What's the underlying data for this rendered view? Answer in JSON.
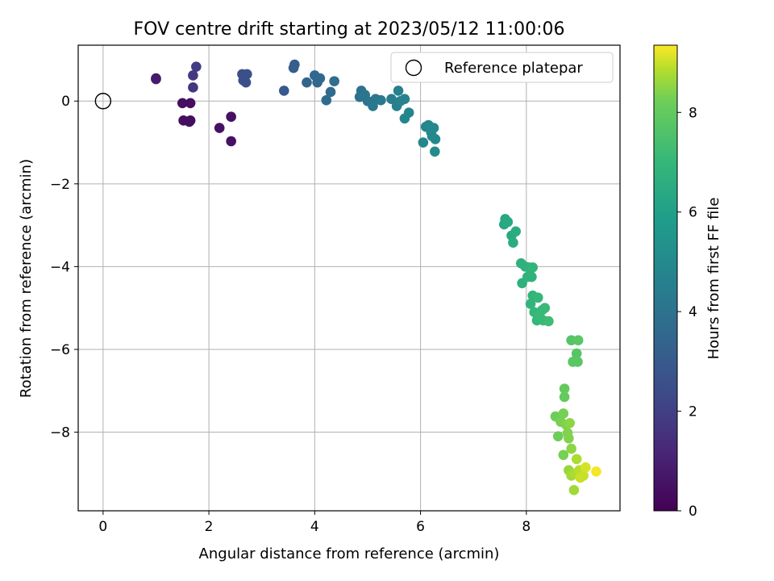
{
  "chart_data": {
    "type": "scatter",
    "title": "FOV centre drift starting at 2023/05/12 11:00:06",
    "xlabel": "Angular distance from reference (arcmin)",
    "ylabel": "Rotation from reference (arcmin)",
    "colorbar_label": "Hours from first FF file",
    "colormap": "viridis",
    "xlim": [
      -0.47,
      9.77
    ],
    "ylim": [
      -9.9,
      1.35
    ],
    "clim": [
      0,
      9.35
    ],
    "x_ticks": [
      0,
      2,
      4,
      6,
      8
    ],
    "x_tick_labels": [
      "0",
      "2",
      "4",
      "6",
      "8"
    ],
    "y_ticks": [
      0,
      -2,
      -4,
      -6,
      -8
    ],
    "y_tick_labels": [
      "0",
      "−2",
      "−4",
      "−6",
      "−8"
    ],
    "colorbar_ticks": [
      0,
      2,
      4,
      6,
      8
    ],
    "colorbar_tick_labels": [
      "0",
      "2",
      "4",
      "6",
      "8"
    ],
    "grid": true,
    "legend": {
      "position": "top-right",
      "entries": [
        "Reference platepar"
      ]
    },
    "reference": {
      "x": 0,
      "y": 0
    },
    "series": [
      {
        "points": [
          [
            1.0,
            0.53,
            0.8
          ],
          [
            1.0,
            0.55,
            0.8
          ],
          [
            1.5,
            -0.05,
            0.4
          ],
          [
            1.52,
            -0.47,
            0.4
          ],
          [
            1.65,
            -0.05,
            0.4
          ],
          [
            1.65,
            -0.47,
            0.45
          ],
          [
            1.63,
            -0.5,
            0.45
          ],
          [
            2.2,
            -0.65,
            0.5
          ],
          [
            2.42,
            -0.38,
            0.5
          ],
          [
            2.42,
            -0.97,
            0.5
          ],
          [
            1.7,
            0.62,
            1.7
          ],
          [
            1.7,
            0.33,
            1.7
          ],
          [
            1.76,
            0.83,
            1.9
          ],
          [
            2.63,
            0.65,
            2.5
          ],
          [
            2.72,
            0.65,
            2.6
          ],
          [
            2.65,
            0.5,
            2.6
          ],
          [
            2.7,
            0.45,
            2.6
          ],
          [
            3.42,
            0.25,
            3.0
          ],
          [
            3.6,
            0.8,
            3.1
          ],
          [
            3.62,
            0.88,
            3.1
          ],
          [
            3.85,
            0.45,
            3.4
          ],
          [
            4.0,
            0.62,
            3.5
          ],
          [
            4.05,
            0.45,
            3.5
          ],
          [
            4.1,
            0.55,
            3.6
          ],
          [
            4.22,
            0.02,
            3.7
          ],
          [
            4.3,
            0.22,
            3.7
          ],
          [
            4.37,
            0.48,
            3.8
          ],
          [
            4.85,
            0.1,
            4.0
          ],
          [
            4.88,
            0.25,
            4.0
          ],
          [
            4.95,
            0.15,
            4.1
          ],
          [
            5.0,
            0.0,
            4.1
          ],
          [
            5.1,
            -0.12,
            4.2
          ],
          [
            5.15,
            0.05,
            4.2
          ],
          [
            5.25,
            0.02,
            4.3
          ],
          [
            5.45,
            0.05,
            4.5
          ],
          [
            5.55,
            -0.12,
            4.6
          ],
          [
            5.58,
            0.25,
            4.6
          ],
          [
            5.62,
            0.0,
            4.7
          ],
          [
            5.7,
            0.05,
            4.7
          ],
          [
            5.7,
            -0.42,
            4.8
          ],
          [
            5.78,
            -0.28,
            4.8
          ],
          [
            6.05,
            -1.0,
            4.9
          ],
          [
            6.1,
            -0.62,
            4.9
          ],
          [
            6.15,
            -0.58,
            4.9
          ],
          [
            6.2,
            -0.75,
            5.0
          ],
          [
            6.22,
            -0.85,
            5.0
          ],
          [
            6.25,
            -0.65,
            5.0
          ],
          [
            6.28,
            -0.92,
            5.0
          ],
          [
            6.27,
            -1.22,
            5.1
          ],
          [
            7.58,
            -2.98,
            6.3
          ],
          [
            7.6,
            -2.85,
            6.3
          ],
          [
            7.65,
            -2.92,
            6.4
          ],
          [
            7.72,
            -3.25,
            6.4
          ],
          [
            7.75,
            -3.42,
            6.5
          ],
          [
            7.8,
            -3.15,
            6.5
          ],
          [
            7.9,
            -3.92,
            6.7
          ],
          [
            7.92,
            -4.4,
            6.7
          ],
          [
            7.98,
            -4.0,
            6.7
          ],
          [
            8.02,
            -4.25,
            6.8
          ],
          [
            8.05,
            -4.02,
            6.8
          ],
          [
            8.1,
            -4.25,
            6.8
          ],
          [
            8.12,
            -4.02,
            6.9
          ],
          [
            8.08,
            -4.9,
            6.9
          ],
          [
            8.12,
            -4.7,
            6.9
          ],
          [
            8.15,
            -5.1,
            7.0
          ],
          [
            8.2,
            -5.3,
            7.0
          ],
          [
            8.22,
            -4.75,
            7.0
          ],
          [
            8.25,
            -5.2,
            7.1
          ],
          [
            8.3,
            -5.05,
            7.1
          ],
          [
            8.32,
            -5.3,
            7.1
          ],
          [
            8.35,
            -5.0,
            7.1
          ],
          [
            8.42,
            -5.32,
            7.2
          ],
          [
            8.85,
            -5.78,
            7.7
          ],
          [
            8.95,
            -6.1,
            7.7
          ],
          [
            8.98,
            -5.78,
            7.8
          ],
          [
            8.88,
            -6.3,
            7.8
          ],
          [
            8.97,
            -6.3,
            7.8
          ],
          [
            8.72,
            -6.95,
            8.0
          ],
          [
            8.72,
            -7.15,
            8.0
          ],
          [
            8.55,
            -7.62,
            8.2
          ],
          [
            8.6,
            -8.1,
            8.2
          ],
          [
            8.65,
            -7.75,
            8.3
          ],
          [
            8.7,
            -7.55,
            8.3
          ],
          [
            8.7,
            -8.55,
            8.3
          ],
          [
            8.75,
            -7.82,
            8.4
          ],
          [
            8.78,
            -8.02,
            8.4
          ],
          [
            8.8,
            -8.15,
            8.4
          ],
          [
            8.82,
            -7.78,
            8.5
          ],
          [
            8.85,
            -8.4,
            8.5
          ],
          [
            8.8,
            -8.92,
            8.6
          ],
          [
            8.85,
            -9.05,
            8.7
          ],
          [
            8.9,
            -9.4,
            8.7
          ],
          [
            8.95,
            -8.65,
            8.8
          ],
          [
            8.92,
            -9.0,
            8.8
          ],
          [
            9.0,
            -8.92,
            8.9
          ],
          [
            9.02,
            -9.1,
            9.0
          ],
          [
            9.08,
            -9.05,
            9.0
          ],
          [
            9.12,
            -8.85,
            9.1
          ],
          [
            9.32,
            -8.95,
            9.3
          ]
        ]
      }
    ]
  }
}
